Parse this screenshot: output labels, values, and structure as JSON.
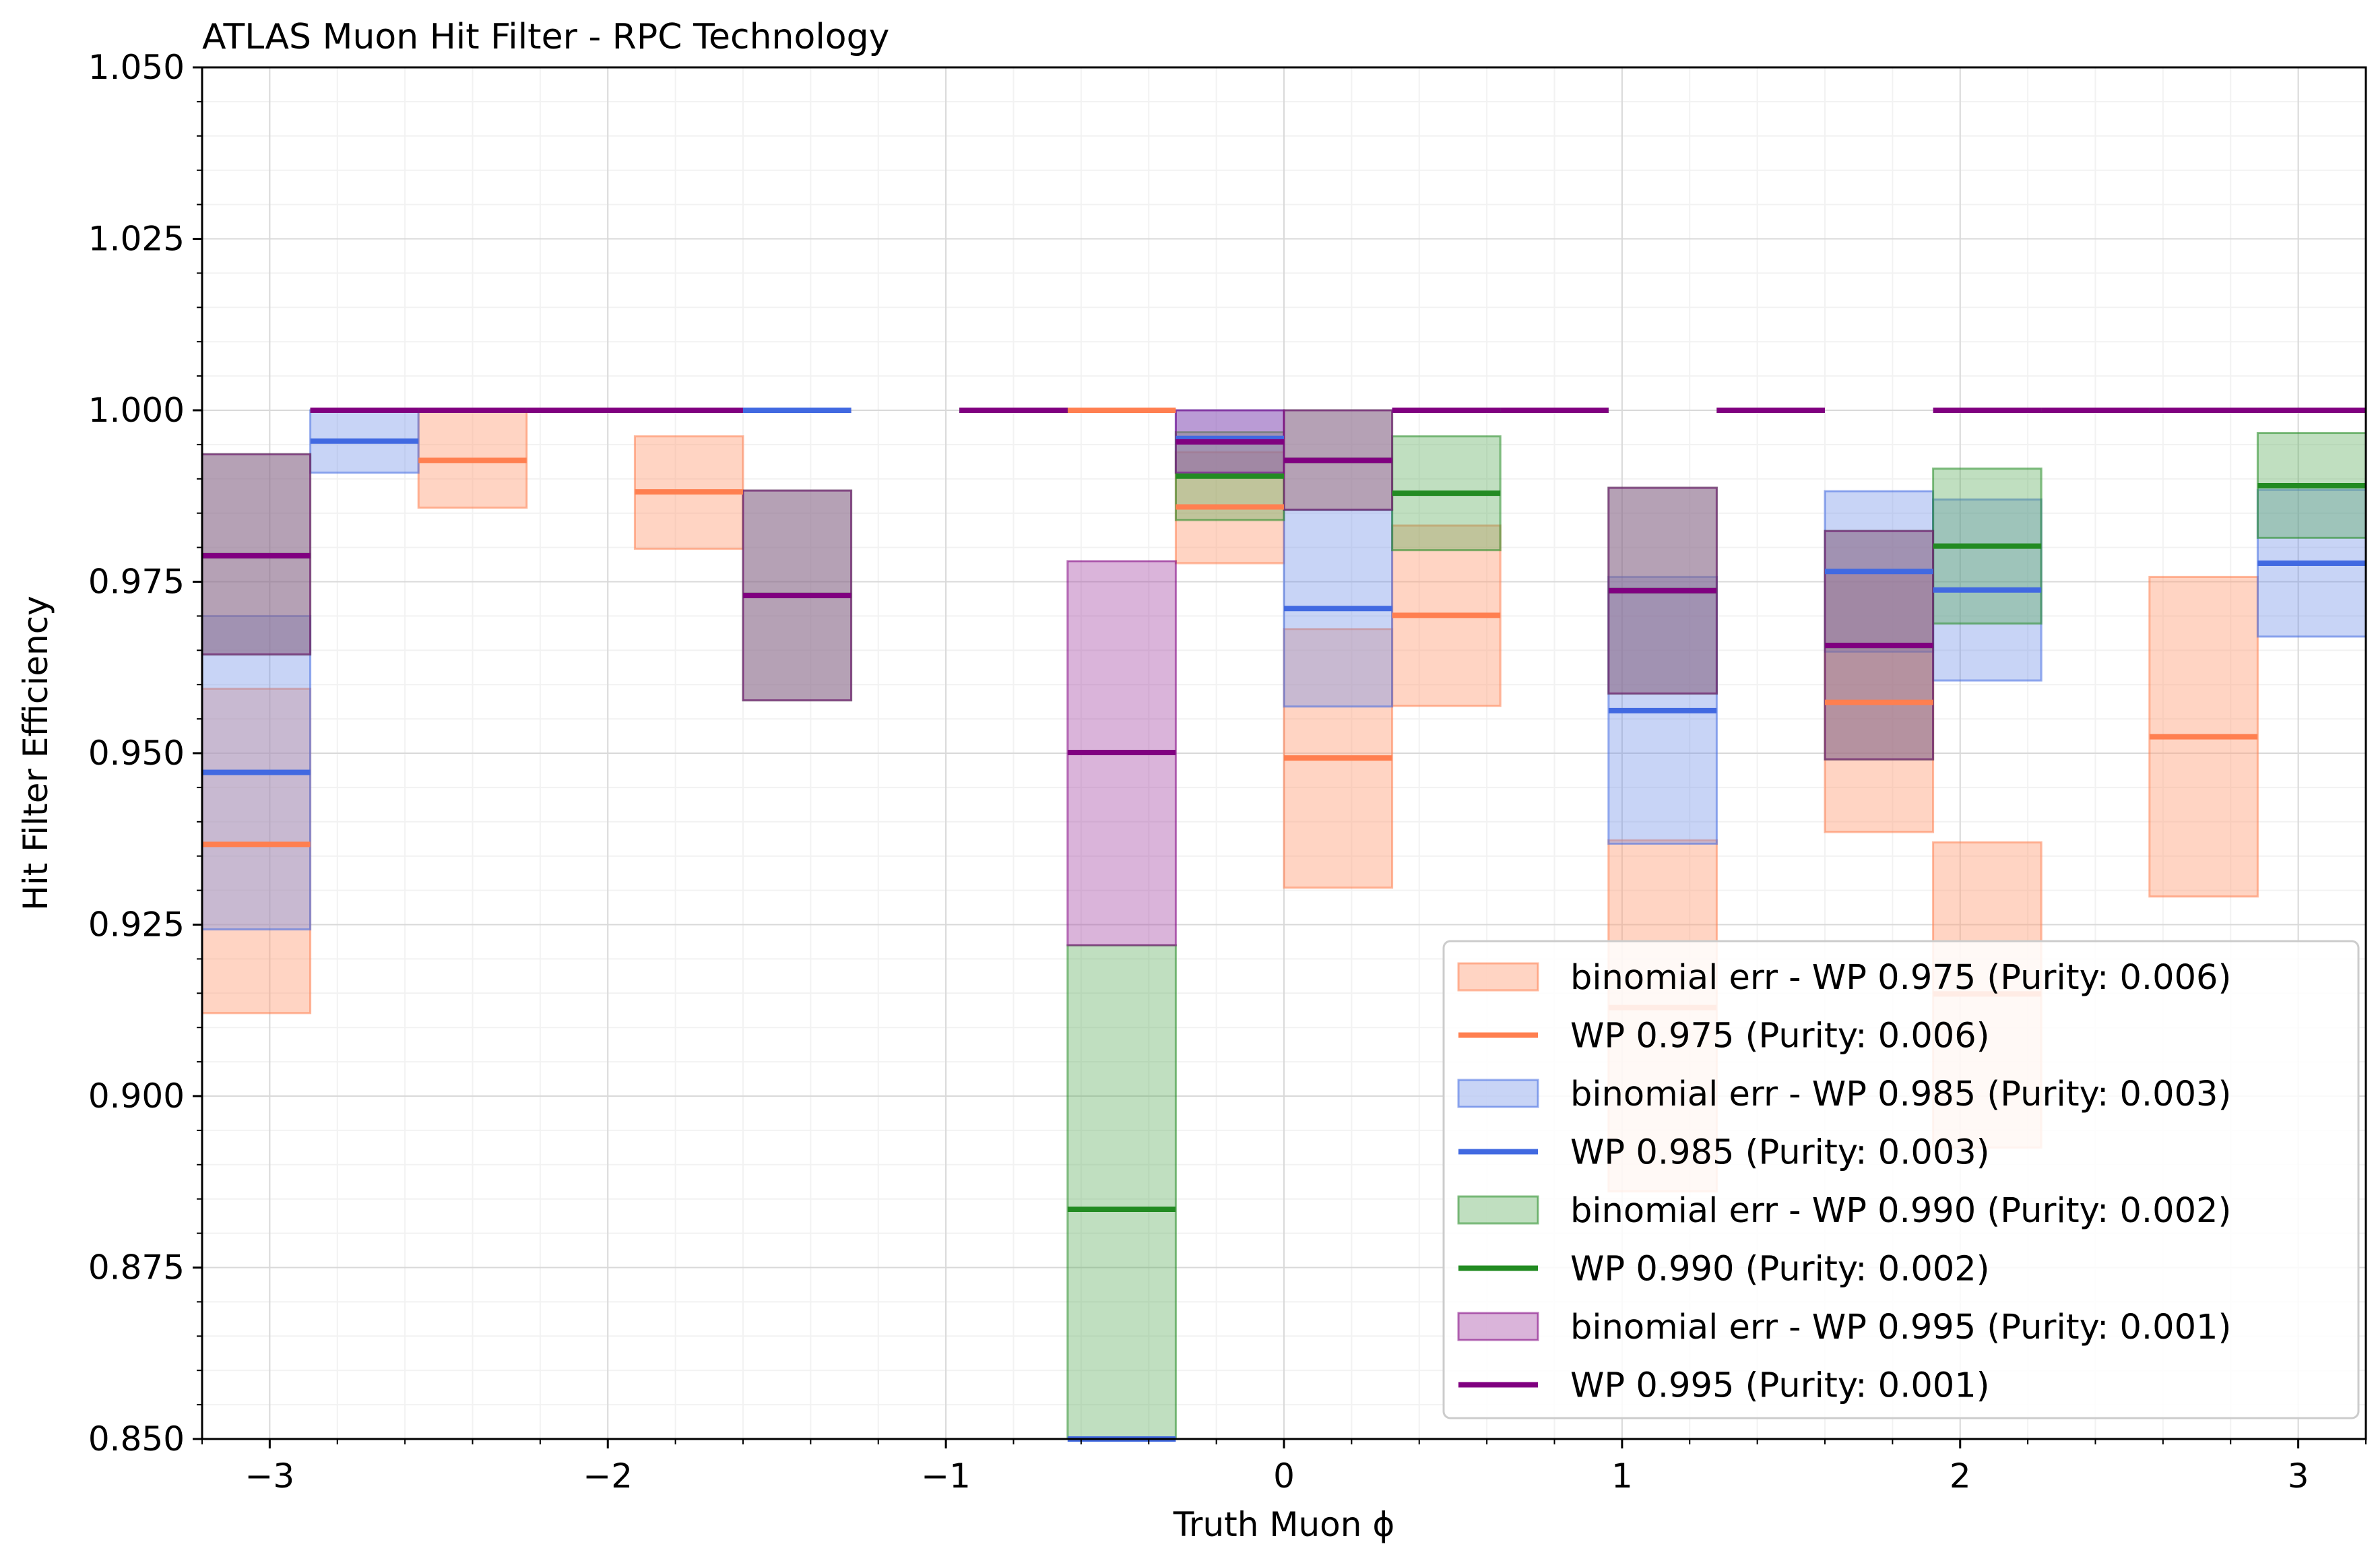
{
  "chart_data": {
    "type": "bar",
    "title": "ATLAS Muon Hit Filter - RPC Technology",
    "xlabel": "Truth Muon ϕ",
    "ylabel": "Hit Filter Efficiency",
    "xlim": [
      -3.2,
      3.2
    ],
    "ylim": [
      0.85,
      1.05
    ],
    "x_ticks": [
      -3,
      -2,
      -1,
      0,
      1,
      2,
      3
    ],
    "x_tick_labels": [
      "−3",
      "−2",
      "−1",
      "0",
      "1",
      "2",
      "3"
    ],
    "y_ticks": [
      0.85,
      0.875,
      0.9,
      0.925,
      0.95,
      0.975,
      1.0,
      1.025,
      1.05
    ],
    "y_tick_labels": [
      "0.850",
      "0.875",
      "0.900",
      "0.925",
      "0.950",
      "0.975",
      "1.000",
      "1.025",
      "1.050"
    ],
    "grid": true,
    "legend_position": "bottom-right",
    "bin_edges": [
      -3.2,
      -2.88,
      -2.56,
      -2.24,
      -1.92,
      -1.6,
      -1.28,
      -0.96,
      -0.64,
      -0.32,
      0.0,
      0.32,
      0.64,
      0.96,
      1.28,
      1.6,
      1.92,
      2.24,
      2.56,
      2.88,
      3.2
    ],
    "series": [
      {
        "name": "WP 0.975 (Purity: 0.006)",
        "band_name": "binomial err - WP 0.975 (Purity: 0.006)",
        "color": "#ff7f50",
        "values": [
          0.9367,
          1.0,
          0.9927,
          1.0,
          0.9881,
          1.0,
          null,
          1.0,
          1.0,
          0.9859,
          0.9493,
          0.9701,
          1.0,
          0.9129,
          1.0,
          0.9574,
          0.9149,
          1.0,
          0.9524,
          1.0
        ],
        "lower": [
          0.9121,
          1.0,
          0.9858,
          1.0,
          0.9798,
          1.0,
          null,
          1.0,
          1.0,
          0.9777,
          0.9304,
          0.9569,
          1.0,
          0.8861,
          1.0,
          0.9385,
          0.8925,
          1.0,
          0.9291,
          1.0
        ],
        "upper": [
          0.9594,
          1.0,
          1.0,
          1.0,
          0.9962,
          1.0,
          null,
          1.0,
          1.0,
          0.9939,
          0.9681,
          0.9832,
          1.0,
          0.9373,
          1.0,
          0.9763,
          0.937,
          1.0,
          0.9757,
          1.0
        ]
      },
      {
        "name": "WP 0.985 (Purity: 0.003)",
        "band_name": "binomial err - WP 0.985 (Purity: 0.003)",
        "color": "#4169e1",
        "values": [
          0.9472,
          0.9955,
          1.0,
          1.0,
          1.0,
          1.0,
          null,
          1.0,
          0.85,
          0.9959,
          0.9711,
          1.0,
          1.0,
          0.9562,
          1.0,
          0.9765,
          0.9738,
          1.0,
          1.0,
          0.9777
        ],
        "lower": [
          0.9243,
          0.9909,
          1.0,
          1.0,
          1.0,
          1.0,
          null,
          1.0,
          0.85,
          0.9909,
          0.9568,
          1.0,
          1.0,
          0.9368,
          1.0,
          0.9648,
          0.9606,
          1.0,
          1.0,
          0.967
        ],
        "upper": [
          0.97,
          1.0,
          1.0,
          1.0,
          1.0,
          1.0,
          null,
          1.0,
          0.85,
          1.0,
          0.9855,
          1.0,
          1.0,
          0.9757,
          1.0,
          0.9882,
          0.987,
          1.0,
          1.0,
          0.9884
        ]
      },
      {
        "name": "WP 0.990 (Purity: 0.002)",
        "band_name": "binomial err - WP 0.990 (Purity: 0.002)",
        "color": "#228b22",
        "values": [
          0.9788,
          1.0,
          1.0,
          1.0,
          1.0,
          0.973,
          null,
          1.0,
          0.8835,
          0.9904,
          0.9927,
          0.9879,
          1.0,
          0.9737,
          1.0,
          0.9657,
          0.9802,
          1.0,
          1.0,
          0.989
        ],
        "lower": [
          0.9644,
          1.0,
          1.0,
          1.0,
          1.0,
          0.9577,
          null,
          1.0,
          0.8498,
          0.984,
          0.9855,
          0.9796,
          1.0,
          0.9587,
          1.0,
          0.9491,
          0.9689,
          1.0,
          1.0,
          0.9814
        ],
        "upper": [
          0.9936,
          1.0,
          1.0,
          1.0,
          1.0,
          0.9883,
          null,
          1.0,
          0.922,
          0.9968,
          1.0,
          0.9962,
          1.0,
          0.9887,
          1.0,
          0.9824,
          0.9915,
          1.0,
          1.0,
          0.9967
        ]
      },
      {
        "name": "WP 0.995 (Purity: 0.001)",
        "band_name": "binomial err - WP 0.995 (Purity: 0.001)",
        "color": "#800080",
        "values": [
          0.9788,
          1.0,
          1.0,
          1.0,
          1.0,
          0.973,
          null,
          1.0,
          0.9501,
          0.9954,
          0.9927,
          1.0,
          1.0,
          0.9737,
          1.0,
          0.9657,
          1.0,
          1.0,
          1.0,
          1.0
        ],
        "lower": [
          0.9644,
          1.0,
          1.0,
          1.0,
          1.0,
          0.9577,
          null,
          1.0,
          0.922,
          0.9909,
          0.9855,
          1.0,
          1.0,
          0.9587,
          1.0,
          0.9491,
          1.0,
          1.0,
          1.0,
          1.0
        ],
        "upper": [
          0.9936,
          1.0,
          1.0,
          1.0,
          1.0,
          0.9883,
          null,
          1.0,
          0.978,
          1.0,
          1.0,
          1.0,
          1.0,
          0.9887,
          1.0,
          0.9824,
          1.0,
          1.0,
          1.0,
          1.0
        ]
      }
    ]
  }
}
